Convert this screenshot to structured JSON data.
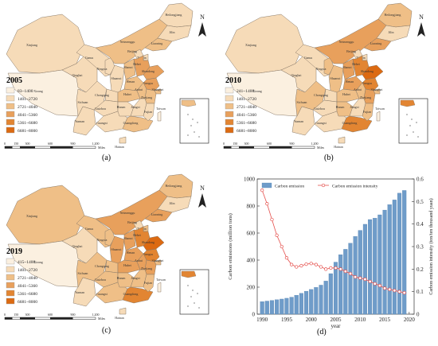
{
  "colors": {
    "c1": "#fbf0e0",
    "c2": "#f6dbb8",
    "c3": "#efbf87",
    "c4": "#e8a05c",
    "c5": "#e28532",
    "c6": "#dc6a12",
    "white": "#ffffff",
    "bar": "#6f9cc9",
    "line": "#e5504d"
  },
  "north_label": "N",
  "scale": {
    "ticks": [
      "0",
      "150",
      "300",
      "600",
      "900",
      "1,200"
    ],
    "unit": "Miles"
  },
  "maps": [
    {
      "key": "a",
      "year": "2005",
      "caption": "(a)",
      "legend": [
        "83~1400",
        "1401~2720",
        "2721~4040",
        "4041~5360",
        "5361~6680",
        "6681~8000"
      ],
      "provinces": [
        {
          "name": "Xinjiang",
          "color": 1
        },
        {
          "name": "Xizang",
          "color": 0
        },
        {
          "name": "Qinghai",
          "color": 1
        },
        {
          "name": "Gansu",
          "color": 1
        },
        {
          "name": "Sichuan",
          "color": 1
        },
        {
          "name": "Yunnan",
          "color": 1
        },
        {
          "name": "Ningxia",
          "color": 1
        },
        {
          "name": "Shaanxi",
          "color": 1
        },
        {
          "name": "Chongqing",
          "color": 1
        },
        {
          "name": "Guizhou",
          "color": 1
        },
        {
          "name": "Guangxi",
          "color": 1
        },
        {
          "name": "Neimenggu",
          "color": 2
        },
        {
          "name": "Shanxi",
          "color": 2
        },
        {
          "name": "Henan",
          "color": 2
        },
        {
          "name": "Hubei",
          "color": 2
        },
        {
          "name": "Hunan",
          "color": 1
        },
        {
          "name": "Guangdong",
          "color": 2
        },
        {
          "name": "Heilongjiang",
          "color": 1
        },
        {
          "name": "Jilin",
          "color": 1
        },
        {
          "name": "Liaoning",
          "color": 2
        },
        {
          "name": "Beijing",
          "color": 1
        },
        {
          "name": "Tianjin",
          "color": 1
        },
        {
          "name": "Hebei",
          "color": 3
        },
        {
          "name": "Shandong",
          "color": 3
        },
        {
          "name": "Jiangsu",
          "color": 3
        },
        {
          "name": "Anhui",
          "color": 2
        },
        {
          "name": "Shanghai",
          "color": 2
        },
        {
          "name": "Zhejiang",
          "color": 2
        },
        {
          "name": "Jiangxi",
          "color": 1
        },
        {
          "name": "Fujian",
          "color": 1
        },
        {
          "name": "Hainan",
          "color": 1
        },
        {
          "name": "Taiwan",
          "color": 0
        }
      ]
    },
    {
      "key": "b",
      "year": "2010",
      "caption": "(b)",
      "legend": [
        "241~1400",
        "1401~2720",
        "2721~4040",
        "4041~5360",
        "5361~6680",
        "6681~8000"
      ],
      "provinces": [
        {
          "name": "Xinjiang",
          "color": 1
        },
        {
          "name": "Xizang",
          "color": 0
        },
        {
          "name": "Qinghai",
          "color": 1
        },
        {
          "name": "Gansu",
          "color": 1
        },
        {
          "name": "Sichuan",
          "color": 2
        },
        {
          "name": "Yunnan",
          "color": 1
        },
        {
          "name": "Ningxia",
          "color": 2
        },
        {
          "name": "Shaanxi",
          "color": 2
        },
        {
          "name": "Chongqing",
          "color": 1
        },
        {
          "name": "Guizhou",
          "color": 1
        },
        {
          "name": "Guangxi",
          "color": 1
        },
        {
          "name": "Neimenggu",
          "color": 3
        },
        {
          "name": "Shanxi",
          "color": 3
        },
        {
          "name": "Henan",
          "color": 3
        },
        {
          "name": "Hubei",
          "color": 2
        },
        {
          "name": "Hunan",
          "color": 2
        },
        {
          "name": "Guangdong",
          "color": 4
        },
        {
          "name": "Heilongjiang",
          "color": 2
        },
        {
          "name": "Jilin",
          "color": 1
        },
        {
          "name": "Liaoning",
          "color": 3
        },
        {
          "name": "Beijing",
          "color": 1
        },
        {
          "name": "Tianjin",
          "color": 1
        },
        {
          "name": "Hebei",
          "color": 4
        },
        {
          "name": "Shandong",
          "color": 5
        },
        {
          "name": "Jiangsu",
          "color": 4
        },
        {
          "name": "Anhui",
          "color": 2
        },
        {
          "name": "Shanghai",
          "color": 2
        },
        {
          "name": "Zhejiang",
          "color": 3
        },
        {
          "name": "Jiangxi",
          "color": 1
        },
        {
          "name": "Fujian",
          "color": 2
        },
        {
          "name": "Hainan",
          "color": 1
        },
        {
          "name": "Taiwan",
          "color": 0
        }
      ]
    },
    {
      "key": "c",
      "year": "2019",
      "caption": "(c)",
      "legend": [
        "415~1400",
        "1401~2720",
        "2721~4040",
        "4041~5360",
        "5361~6680",
        "6681~8000"
      ],
      "provinces": [
        {
          "name": "Xinjiang",
          "color": 2
        },
        {
          "name": "Xizang",
          "color": 0
        },
        {
          "name": "Qinghai",
          "color": 1
        },
        {
          "name": "Gansu",
          "color": 2
        },
        {
          "name": "Sichuan",
          "color": 2
        },
        {
          "name": "Yunnan",
          "color": 1
        },
        {
          "name": "Ningxia",
          "color": 2
        },
        {
          "name": "Shaanxi",
          "color": 3
        },
        {
          "name": "Chongqing",
          "color": 2
        },
        {
          "name": "Guizhou",
          "color": 2
        },
        {
          "name": "Guangxi",
          "color": 2
        },
        {
          "name": "Neimenggu",
          "color": 3
        },
        {
          "name": "Shanxi",
          "color": 3
        },
        {
          "name": "Henan",
          "color": 3
        },
        {
          "name": "Hubei",
          "color": 3
        },
        {
          "name": "Hunan",
          "color": 2
        },
        {
          "name": "Guangdong",
          "color": 4
        },
        {
          "name": "Heilongjiang",
          "color": 2
        },
        {
          "name": "Jilin",
          "color": 1
        },
        {
          "name": "Liaoning",
          "color": 3
        },
        {
          "name": "Beijing",
          "color": 1
        },
        {
          "name": "Tianjin",
          "color": 2
        },
        {
          "name": "Hebei",
          "color": 4
        },
        {
          "name": "Shandong",
          "color": 5
        },
        {
          "name": "Jiangsu",
          "color": 4
        },
        {
          "name": "Anhui",
          "color": 3
        },
        {
          "name": "Shanghai",
          "color": 2
        },
        {
          "name": "Zhejiang",
          "color": 3
        },
        {
          "name": "Jiangxi",
          "color": 2
        },
        {
          "name": "Fujian",
          "color": 2
        },
        {
          "name": "Hainan",
          "color": 1
        },
        {
          "name": "Taiwan",
          "color": 0
        }
      ]
    }
  ],
  "chart_caption": "(d)",
  "chart_data": {
    "type": "bar",
    "x": [
      1990,
      1991,
      1992,
      1993,
      1994,
      1995,
      1996,
      1997,
      1998,
      1999,
      2000,
      2001,
      2002,
      2003,
      2004,
      2005,
      2006,
      2007,
      2008,
      2009,
      2010,
      2011,
      2012,
      2013,
      2014,
      2015,
      2016,
      2017,
      2018,
      2019
    ],
    "series": [
      {
        "name": "Carbon emission",
        "kind": "bar",
        "axis": "left",
        "values": [
          93,
          97,
          102,
          107,
          112,
          118,
          126,
          140,
          155,
          170,
          183,
          198,
          215,
          245,
          300,
          385,
          440,
          480,
          525,
          575,
          620,
          665,
          700,
          710,
          735,
          770,
          810,
          845,
          895,
          915
        ]
      },
      {
        "name": "Carbon emission intensity",
        "kind": "line",
        "axis": "right",
        "values": [
          0.55,
          0.49,
          0.42,
          0.35,
          0.3,
          0.25,
          0.22,
          0.21,
          0.215,
          0.222,
          0.225,
          0.22,
          0.21,
          0.2,
          0.205,
          0.205,
          0.2,
          0.19,
          0.18,
          0.165,
          0.16,
          0.155,
          0.145,
          0.135,
          0.127,
          0.115,
          0.11,
          0.105,
          0.1,
          0.095
        ]
      }
    ],
    "xlabel": "year",
    "ylabel": "Carbon emissions (million tons)",
    "y2label": "Carbon emission intensity (ton/ten thousand yuan)",
    "xlim": [
      1989,
      2021
    ],
    "ylim": [
      0,
      1000
    ],
    "y2lim": [
      0,
      0.6
    ],
    "xticks": [
      "1990",
      "1995",
      "2000",
      "2005",
      "2010",
      "2015",
      "2020"
    ],
    "yticks": [
      "0",
      "200",
      "400",
      "600",
      "800",
      "1000"
    ],
    "y2ticks": [
      "0",
      "0.1",
      "0.2",
      "0.3",
      "0.4",
      "0.5",
      "0.6"
    ],
    "legend_position": "top-left"
  }
}
